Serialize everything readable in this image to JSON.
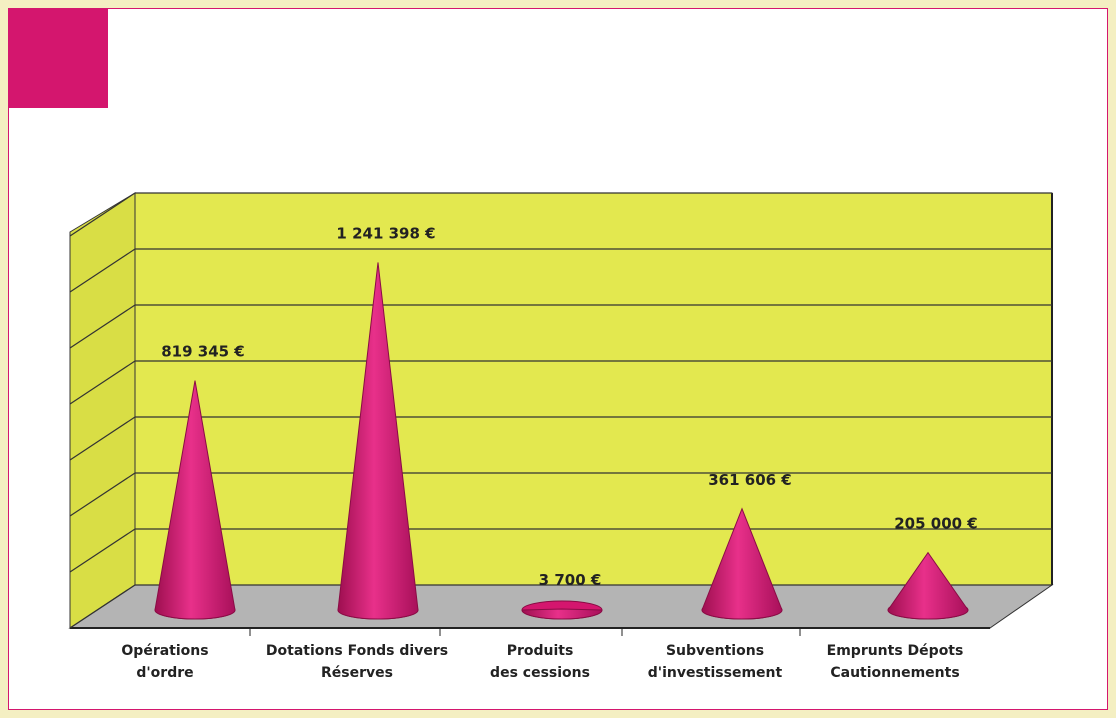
{
  "chart_data": {
    "type": "cone",
    "categories": [
      "Opérations\nd'ordre",
      "Dotations Fonds divers\nRéserves",
      "Produits\ndes cessions",
      "Subventions\nd'investissement",
      "Emprunts Dépots\nCautionnements"
    ],
    "values": [
      819345,
      1241398,
      3700,
      361606,
      205000
    ],
    "value_labels": [
      "819 345 €",
      "1 241 398 €",
      "3 700 €",
      "361 606 €",
      "205 000 €"
    ],
    "color": "#d4166e",
    "ylim": [
      0,
      1400000
    ],
    "yticks": [
      0,
      200000,
      400000,
      600000,
      800000,
      1000000,
      1200000,
      1400000
    ],
    "grid": true
  }
}
